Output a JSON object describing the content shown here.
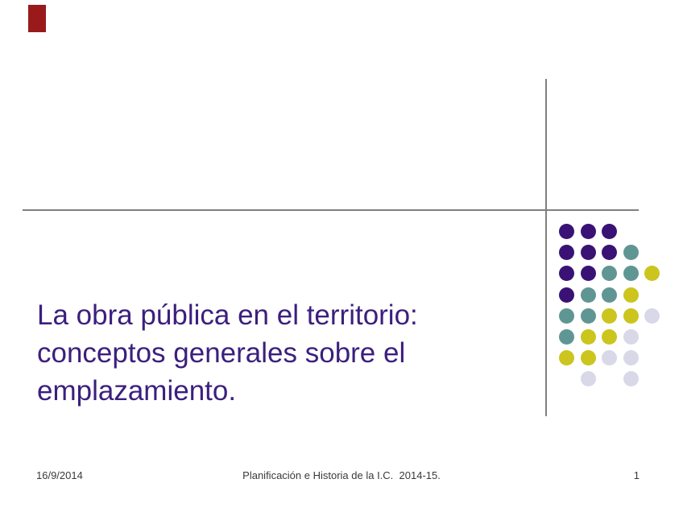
{
  "slide": {
    "title_lines": [
      "La obra pública en el territorio:",
      "conceptos generales sobre el",
      "emplazamiento."
    ],
    "footer": {
      "date": "16/9/2014",
      "course": "Planificación e Historia de la I.C.  2014-15.",
      "page_number": "1"
    },
    "colors": {
      "title_text": "#3B1F7D",
      "footer_text": "#3A3A3A",
      "accent_red": "#9A1A1C",
      "rule_gray": "#808080",
      "dot_purple": "#3A1276",
      "dot_teal": "#5F9694",
      "dot_yellow": "#CBC51E",
      "dot_lavender": "#D8D8E9"
    },
    "decoration": {
      "dot_grid": {
        "rows": [
          [
            "purple",
            "purple",
            "purple",
            null,
            null
          ],
          [
            "purple",
            "purple",
            "purple",
            "teal",
            null
          ],
          [
            "purple",
            "purple",
            "teal",
            "teal",
            "yellow"
          ],
          [
            "purple",
            "teal",
            "teal",
            "yellow",
            null
          ],
          [
            "teal",
            "teal",
            "yellow",
            "yellow",
            "lavender"
          ],
          [
            "teal",
            "yellow",
            "yellow",
            "lavender",
            null
          ],
          [
            "yellow",
            "yellow",
            "lavender",
            "lavender",
            null
          ],
          [
            null,
            "lavender",
            null,
            "lavender",
            null
          ]
        ],
        "col_spacing": 26.5,
        "row_spacing": 26.2,
        "dot_size": 19
      }
    }
  }
}
